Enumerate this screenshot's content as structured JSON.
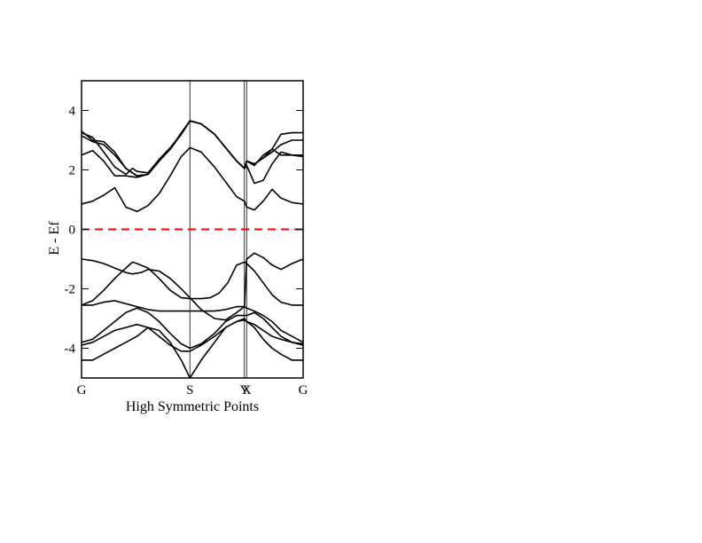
{
  "chart_data": {
    "type": "line",
    "title": "",
    "xlabel": "High Symmetric Points",
    "ylabel": "E - Ef",
    "xlim": [
      0,
      1
    ],
    "ylim": [
      -5,
      5
    ],
    "yticks": [
      4,
      2,
      0,
      -2,
      -4
    ],
    "ytick_labels": [
      "4",
      "2",
      "0",
      "-2",
      "-4"
    ],
    "high_symmetry_points": [
      {
        "label": "G",
        "x": 0.0
      },
      {
        "label": "S",
        "x": 0.489
      },
      {
        "label": "Y",
        "x": 0.735
      },
      {
        "label": "X",
        "x": 0.745
      },
      {
        "label": "G",
        "x": 1.0
      }
    ],
    "fermi_level": {
      "y": 0,
      "color": "#ff0000",
      "style": "dashed"
    },
    "line_color": "#000000",
    "series": [
      {
        "x": [
          0,
          0.05,
          0.1,
          0.15,
          0.2,
          0.25,
          0.3,
          0.35,
          0.4,
          0.45,
          0.489,
          0.54,
          0.6,
          0.65,
          0.7,
          0.735,
          0.745,
          0.78,
          0.82,
          0.86,
          0.9,
          0.95,
          1.0
        ],
        "y": [
          -4.4,
          -4.4,
          -4.2,
          -4.0,
          -3.8,
          -3.6,
          -3.3,
          -3.4,
          -3.8,
          -4.4,
          -5.0,
          -4.4,
          -3.8,
          -3.3,
          -3.1,
          -3.0,
          -3.1,
          -3.3,
          -3.7,
          -4.0,
          -4.2,
          -4.4,
          -4.4
        ]
      },
      {
        "x": [
          0,
          0.05,
          0.1,
          0.15,
          0.2,
          0.25,
          0.3,
          0.35,
          0.4,
          0.45,
          0.489,
          0.54,
          0.6,
          0.65,
          0.7,
          0.735,
          0.745,
          0.78,
          0.82,
          0.86,
          0.9,
          0.95,
          1.0
        ],
        "y": [
          -3.9,
          -3.8,
          -3.6,
          -3.4,
          -3.3,
          -3.2,
          -3.3,
          -3.6,
          -3.9,
          -4.1,
          -4.1,
          -3.9,
          -3.6,
          -3.3,
          -3.1,
          -3.05,
          -3.1,
          -3.2,
          -3.4,
          -3.6,
          -3.7,
          -3.8,
          -3.9
        ]
      },
      {
        "x": [
          0,
          0.05,
          0.1,
          0.15,
          0.2,
          0.25,
          0.3,
          0.35,
          0.4,
          0.45,
          0.489,
          0.54,
          0.6,
          0.65,
          0.7,
          0.735,
          0.745,
          0.78,
          0.82,
          0.86,
          0.9,
          0.95,
          1.0
        ],
        "y": [
          -3.8,
          -3.7,
          -3.4,
          -3.1,
          -2.8,
          -2.65,
          -2.8,
          -3.1,
          -3.5,
          -3.85,
          -4.0,
          -3.85,
          -3.5,
          -3.1,
          -2.9,
          -2.9,
          -2.9,
          -2.8,
          -3.0,
          -3.3,
          -3.6,
          -3.8,
          -3.85
        ]
      },
      {
        "x": [
          0,
          0.05,
          0.1,
          0.15,
          0.2,
          0.25,
          0.3,
          0.35,
          0.4,
          0.45,
          0.489,
          0.54,
          0.6,
          0.65,
          0.7,
          0.735,
          0.745,
          0.78,
          0.82,
          0.86,
          0.9,
          0.95,
          1.0
        ],
        "y": [
          -2.55,
          -2.55,
          -2.45,
          -2.4,
          -2.5,
          -2.6,
          -2.7,
          -2.75,
          -2.75,
          -2.75,
          -2.75,
          -2.75,
          -2.75,
          -2.7,
          -2.6,
          -2.6,
          -2.65,
          -2.75,
          -2.9,
          -3.1,
          -3.4,
          -3.6,
          -3.8
        ]
      },
      {
        "x": [
          0,
          0.05,
          0.1,
          0.15,
          0.2,
          0.23,
          0.25,
          0.3,
          0.35,
          0.4,
          0.45,
          0.489,
          0.54,
          0.58,
          0.62,
          0.66,
          0.7,
          0.735,
          0.745,
          0.78,
          0.82,
          0.86,
          0.9,
          0.95,
          1.0
        ],
        "y": [
          -2.55,
          -2.4,
          -2.05,
          -1.65,
          -1.3,
          -1.1,
          -1.15,
          -1.3,
          -1.65,
          -2.05,
          -2.3,
          -2.33,
          -2.33,
          -2.3,
          -2.15,
          -1.8,
          -1.2,
          -1.1,
          -1.15,
          -1.4,
          -1.8,
          -2.2,
          -2.45,
          -2.55,
          -2.55
        ]
      },
      {
        "x": [
          0,
          0.05,
          0.1,
          0.15,
          0.2,
          0.23,
          0.27,
          0.3,
          0.35,
          0.4,
          0.45,
          0.489,
          0.54,
          0.6,
          0.65,
          0.7,
          0.735,
          0.745,
          0.78,
          0.82,
          0.86,
          0.9,
          0.95,
          1.0
        ],
        "y": [
          -1.0,
          -1.05,
          -1.15,
          -1.3,
          -1.45,
          -1.5,
          -1.45,
          -1.35,
          -1.4,
          -1.65,
          -2.0,
          -2.3,
          -2.7,
          -3.0,
          -3.05,
          -2.8,
          -2.6,
          -1.0,
          -0.8,
          -0.95,
          -1.2,
          -1.35,
          -1.15,
          -1.0
        ]
      },
      {
        "x": [
          0,
          0.05,
          0.1,
          0.15,
          0.2,
          0.25,
          0.3,
          0.35,
          0.4,
          0.45,
          0.489,
          0.54,
          0.6,
          0.65,
          0.7,
          0.735,
          0.745,
          0.78,
          0.82,
          0.86,
          0.9,
          0.95,
          1.0
        ],
        "y": [
          0.85,
          0.95,
          1.15,
          1.4,
          0.75,
          0.6,
          0.8,
          1.2,
          1.8,
          2.45,
          2.75,
          2.6,
          2.1,
          1.6,
          1.1,
          0.95,
          0.75,
          0.65,
          0.95,
          1.35,
          1.05,
          0.9,
          0.85
        ]
      },
      {
        "x": [
          0,
          0.05,
          0.1,
          0.15,
          0.2,
          0.25,
          0.3,
          0.35,
          0.4,
          0.45,
          0.489,
          0.54,
          0.6,
          0.65,
          0.7,
          0.735,
          0.745,
          0.78,
          0.82,
          0.86,
          0.9,
          0.95,
          1.0
        ],
        "y": [
          2.5,
          2.65,
          2.3,
          1.8,
          1.8,
          1.75,
          1.85,
          2.3,
          2.7,
          3.25,
          3.65,
          3.55,
          3.2,
          2.75,
          2.3,
          2.05,
          2.15,
          1.55,
          1.65,
          2.2,
          2.6,
          2.5,
          2.45
        ]
      },
      {
        "x": [
          0,
          0.05,
          0.1,
          0.15,
          0.2,
          0.23,
          0.25,
          0.3,
          0.35,
          0.4,
          0.45,
          0.489,
          0.54,
          0.6,
          0.65,
          0.7,
          0.735,
          0.745,
          0.78,
          0.82,
          0.86,
          0.9,
          0.95,
          1.0
        ],
        "y": [
          3.25,
          3.1,
          2.6,
          2.1,
          1.85,
          2.05,
          1.95,
          1.9,
          2.35,
          2.75,
          3.2,
          3.65,
          3.55,
          3.2,
          2.75,
          2.3,
          2.05,
          2.3,
          2.15,
          2.5,
          2.7,
          2.5,
          2.5,
          2.5
        ]
      },
      {
        "x": [
          0,
          0.05,
          0.1,
          0.15,
          0.2,
          0.25,
          0.3,
          0.35,
          0.4,
          0.45,
          0.489,
          0.54,
          0.6,
          0.65,
          0.7,
          0.735,
          0.745,
          0.78,
          0.82,
          0.86,
          0.9,
          0.95,
          1.0
        ],
        "y": [
          3.15,
          2.95,
          2.85,
          2.5,
          2.05,
          1.8,
          1.85,
          2.3,
          2.7,
          3.2,
          3.65,
          3.55,
          3.2,
          2.75,
          2.3,
          2.05,
          2.3,
          2.2,
          2.4,
          2.7,
          3.2,
          3.25,
          3.25
        ]
      },
      {
        "x": [
          0,
          0.05,
          0.1,
          0.15,
          0.2,
          0.25,
          0.3,
          0.35,
          0.4,
          0.45,
          0.489,
          0.54,
          0.6,
          0.65,
          0.7,
          0.735,
          0.745,
          0.78,
          0.82,
          0.86,
          0.9,
          0.95,
          1.0
        ],
        "y": [
          3.3,
          3.0,
          2.95,
          2.6,
          2.05,
          1.8,
          1.85,
          2.3,
          2.7,
          3.2,
          3.65,
          3.55,
          3.2,
          2.75,
          2.3,
          2.05,
          2.3,
          2.2,
          2.4,
          2.6,
          2.85,
          3.0,
          3.0
        ]
      }
    ]
  }
}
